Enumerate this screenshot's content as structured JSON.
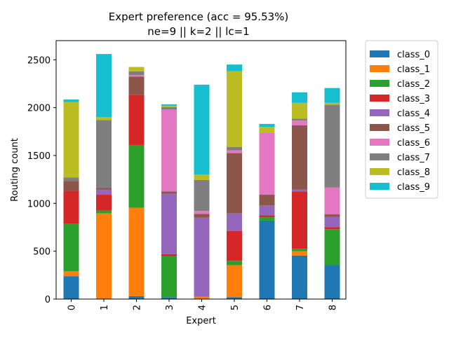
{
  "chart_data": {
    "type": "bar",
    "stacked": true,
    "title": "Expert preference (acc = 95.53%)",
    "subtitle": "ne=9 || k=2 || lc=1",
    "xlabel": "Expert",
    "ylabel": "Routing count",
    "categories": [
      "0",
      "1",
      "2",
      "3",
      "4",
      "5",
      "6",
      "7",
      "8"
    ],
    "ylim": [
      0,
      2700
    ],
    "yticks": [
      0,
      500,
      1000,
      1500,
      2000,
      2500
    ],
    "grid": false,
    "legend_position": "outside-right",
    "series": [
      {
        "name": "class_0",
        "color": "#1f77b4",
        "values": [
          240,
          0,
          30,
          20,
          0,
          20,
          820,
          455,
          355
        ]
      },
      {
        "name": "class_1",
        "color": "#ff7f0e",
        "values": [
          50,
          895,
          925,
          0,
          25,
          335,
          0,
          45,
          0
        ]
      },
      {
        "name": "class_2",
        "color": "#2ca02c",
        "values": [
          495,
          30,
          655,
          430,
          0,
          45,
          35,
          25,
          375
        ]
      },
      {
        "name": "class_3",
        "color": "#d62728",
        "values": [
          345,
          165,
          520,
          20,
          0,
          310,
          20,
          600,
          20
        ]
      },
      {
        "name": "class_4",
        "color": "#9467bd",
        "values": [
          0,
          55,
          0,
          630,
          825,
          185,
          105,
          20,
          110
        ]
      },
      {
        "name": "class_5",
        "color": "#8c564b",
        "values": [
          105,
          15,
          195,
          25,
          40,
          630,
          110,
          670,
          25
        ]
      },
      {
        "name": "class_6",
        "color": "#e377c2",
        "values": [
          0,
          0,
          15,
          855,
          30,
          30,
          650,
          50,
          280
        ]
      },
      {
        "name": "class_7",
        "color": "#7f7f7f",
        "values": [
          35,
          710,
          40,
          25,
          325,
          35,
          0,
          20,
          865
        ]
      },
      {
        "name": "class_8",
        "color": "#bcbd22",
        "values": [
          790,
          30,
          45,
          15,
          55,
          790,
          60,
          165,
          20
        ]
      },
      {
        "name": "class_9",
        "color": "#17becf",
        "values": [
          25,
          660,
          0,
          15,
          940,
          70,
          30,
          110,
          155
        ]
      }
    ]
  }
}
